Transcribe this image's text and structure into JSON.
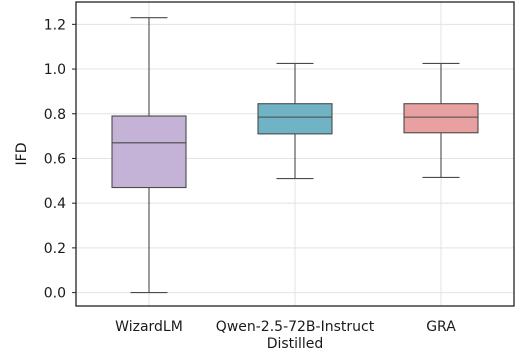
{
  "chart_data": {
    "type": "box",
    "ylabel": "IFD",
    "ylim": [
      -0.06,
      1.3
    ],
    "yticks": [
      0.0,
      0.2,
      0.4,
      0.6,
      0.8,
      1.0,
      1.2
    ],
    "yticklabels": [
      "0.0",
      "0.2",
      "0.4",
      "0.6",
      "0.8",
      "1.0",
      "1.2"
    ],
    "grid": true,
    "categories": [
      {
        "label_lines": [
          "WizardLM"
        ],
        "whisker_low": 0.0,
        "q1": 0.47,
        "median": 0.67,
        "q3": 0.79,
        "whisker_high": 1.23,
        "color": "#c4b3d6"
      },
      {
        "label_lines": [
          "Qwen-2.5-72B-Instruct",
          "Distilled"
        ],
        "whisker_low": 0.51,
        "q1": 0.71,
        "median": 0.785,
        "q3": 0.845,
        "whisker_high": 1.025,
        "color": "#6fb3c4"
      },
      {
        "label_lines": [
          "GRA"
        ],
        "whisker_low": 0.515,
        "q1": 0.715,
        "median": 0.785,
        "q3": 0.845,
        "whisker_high": 1.025,
        "color": "#e8a0a0"
      }
    ]
  }
}
